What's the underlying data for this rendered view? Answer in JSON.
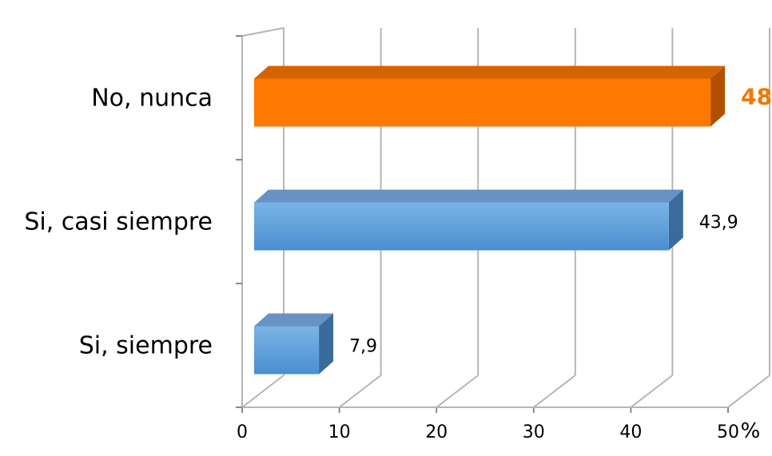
{
  "chart_data": {
    "type": "bar",
    "orientation": "horizontal",
    "style": "3d",
    "categories": [
      "Si, siempre",
      "Si, casi siempre",
      "No, nunca"
    ],
    "values": [
      7.9,
      43.9,
      48.2
    ],
    "data_labels": [
      "7,9",
      "43,9",
      "48"
    ],
    "highlight_index": 2,
    "xlim": [
      0,
      50
    ],
    "x_ticks": [
      "0",
      "10",
      "20",
      "30",
      "40",
      "50"
    ],
    "x_unit": "%",
    "grid": true,
    "legend": "none",
    "colors": {
      "default_front": "#5a9fdc",
      "default_top": "#6891c4",
      "default_side": "#3b6a9c",
      "highlight_front": "#ff7800",
      "highlight_top": "#d46400",
      "highlight_side": "#b05000",
      "highlight_label": "#f07800",
      "grid": "#b5b5b5"
    }
  }
}
